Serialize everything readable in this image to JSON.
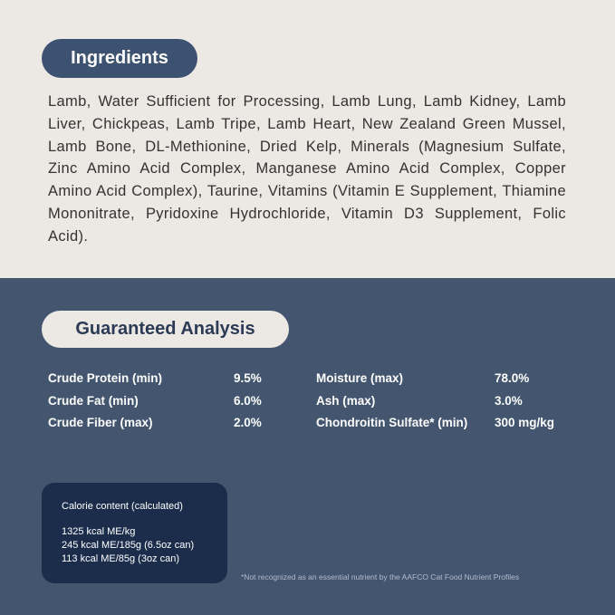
{
  "ingredients": {
    "title": "Ingredients",
    "text": "Lamb, Water Sufficient for Processing, Lamb Lung, Lamb Kidney, Lamb Liver, Chickpeas, Lamb Tripe, Lamb Heart, New Zealand Green Mussel, Lamb Bone, DL-Methionine, Dried Kelp, Minerals (Magnesium Sulfate, Zinc Amino Acid Complex, Manganese Amino Acid Complex, Copper Amino Acid Complex), Taurine, Vitamins (Vitamin E Supplement, Thiamine Mononitrate, Pyridoxine Hydrochloride, Vitamin D3 Supplement, Folic Acid)."
  },
  "analysis": {
    "title": "Guaranteed Analysis",
    "rows": [
      [
        "Crude Protein (min)",
        "9.5%",
        "Moisture (max)",
        "78.0%"
      ],
      [
        "Crude Fat (min)",
        "6.0%",
        "Ash (max)",
        "3.0%"
      ],
      [
        "Crude Fiber (max)",
        "2.0%",
        "Chondroitin Sulfate* (min)",
        "300 mg/kg"
      ]
    ]
  },
  "calorie": {
    "title": "Calorie content (calculated)",
    "lines": [
      "1325 kcal ME/kg",
      "245 kcal ME/185g (6.5oz can)",
      "113 kcal ME/85g (3oz can)"
    ]
  },
  "footnote": "*Not recognized as an essential nutrient by the AAFCO Cat Food Nutrient Profiles"
}
